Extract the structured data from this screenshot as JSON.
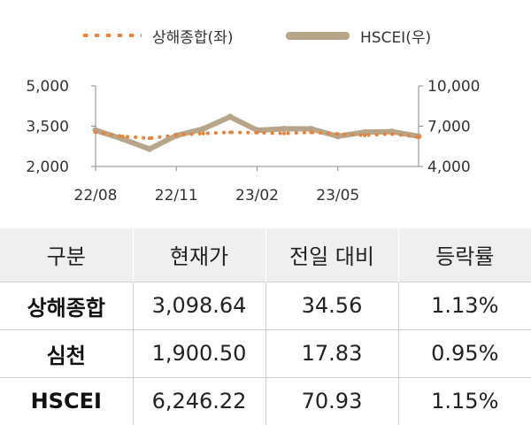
{
  "chart_data": {
    "type": "line",
    "legend_placement": "top",
    "series": [
      {
        "name": "상해종합(좌)",
        "axis": "left",
        "color": "#e8823a",
        "style": "dotted",
        "x": [
          "22/08",
          "22/09",
          "22/10",
          "22/11",
          "22/12",
          "23/01",
          "23/02",
          "23/03",
          "23/04",
          "23/05",
          "23/06",
          "23/07",
          "23/08"
        ],
        "values": [
          3280,
          3120,
          3050,
          3170,
          3230,
          3270,
          3260,
          3230,
          3270,
          3210,
          3160,
          3210,
          3100
        ]
      },
      {
        "name": "HSCEI(우)",
        "axis": "right",
        "color": "#b6a589",
        "style": "solid",
        "x": [
          "22/08",
          "22/09",
          "22/10",
          "22/11",
          "22/12",
          "23/01",
          "23/02",
          "23/03",
          "23/04",
          "23/05",
          "23/06",
          "23/07",
          "23/08"
        ],
        "values": [
          6700,
          6050,
          5300,
          6300,
          6800,
          7700,
          6700,
          6800,
          6800,
          6250,
          6550,
          6600,
          6246
        ]
      }
    ],
    "x_ticks": [
      "22/08",
      "22/11",
      "23/02",
      "23/05"
    ],
    "y_left": {
      "range": [
        2000,
        5000
      ],
      "ticks": [
        "5,000",
        "3,500",
        "2,000"
      ]
    },
    "y_right": {
      "range": [
        4000,
        10000
      ],
      "ticks": [
        "10,000",
        "7,000",
        "4,000"
      ]
    },
    "grid": false
  },
  "table": {
    "headers": [
      "구분",
      "현재가",
      "전일 대비",
      "등락률"
    ],
    "rows": [
      [
        "상해종합",
        "3,098.64",
        "34.56",
        "1.13%"
      ],
      [
        "심천",
        "1,900.50",
        "17.83",
        "0.95%"
      ],
      [
        "HSCEI",
        "6,246.22",
        "70.93",
        "1.15%"
      ]
    ]
  }
}
